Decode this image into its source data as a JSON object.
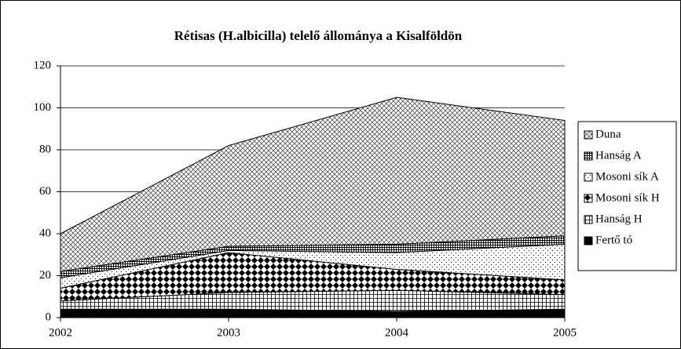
{
  "chart_data": {
    "type": "stacked_area",
    "title": "Rétisas (H.albicilla) telelő állománya a Kisalföldön",
    "categories": [
      "2002",
      "2003",
      "2004",
      "2005"
    ],
    "series": [
      {
        "name": "Fertő tó",
        "color": "#000000",
        "pattern": "solid",
        "values": [
          4,
          4,
          3,
          4
        ]
      },
      {
        "name": "Hanság H",
        "color": "#000000",
        "pattern": "grid",
        "values": [
          4,
          8,
          10,
          7
        ]
      },
      {
        "name": "Mosoni sík H",
        "color": "#000000",
        "pattern": "diamond",
        "values": [
          6,
          19,
          10,
          7
        ]
      },
      {
        "name": "Mosoni sík A",
        "color": "#000000",
        "pattern": "dots",
        "values": [
          5,
          1,
          8,
          17
        ]
      },
      {
        "name": "Hanság A",
        "color": "#000000",
        "pattern": "densegrid",
        "values": [
          3,
          2,
          4,
          4
        ]
      },
      {
        "name": "Duna",
        "color": "#000000",
        "pattern": "crosshatch",
        "values": [
          18,
          48,
          70,
          55
        ]
      }
    ],
    "ylim": [
      0,
      120
    ],
    "yticks": [
      0,
      20,
      40,
      60,
      80,
      100,
      120
    ],
    "grid": true,
    "legend": "right"
  }
}
